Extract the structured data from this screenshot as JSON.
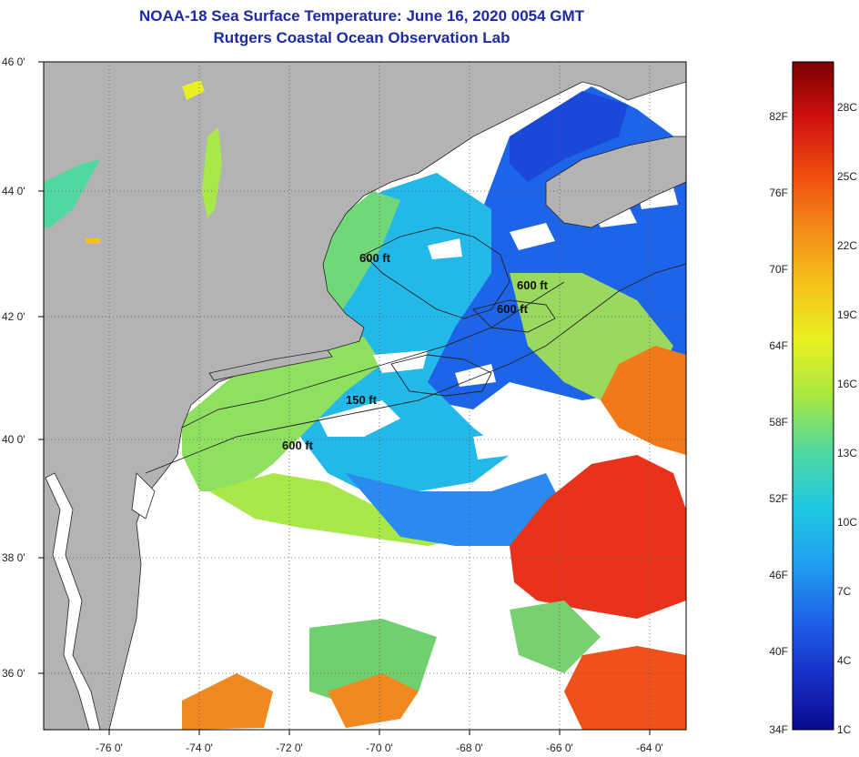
{
  "header": {
    "title": "NOAA-18 Sea Surface Temperature:  June 16, 2020 0054 GMT",
    "subtitle": "Rutgers Coastal Ocean Observation Lab"
  },
  "map": {
    "longitude_labels": [
      "-76 0'",
      "-74 0'",
      "-72 0'",
      "-70 0'",
      "-68 0'",
      "-66 0'",
      "-64 0'"
    ],
    "latitude_labels": [
      "46 0'",
      "44 0'",
      "42 0'",
      "40 0'",
      "38 0'",
      "36 0'"
    ],
    "contour_labels": [
      {
        "text": "600 ft"
      },
      {
        "text": "600 ft"
      },
      {
        "text": "600 ft"
      },
      {
        "text": "150 ft"
      },
      {
        "text": "600 ft"
      }
    ],
    "colors": {
      "land": "#b3b3b3",
      "cloud": "#ffffff",
      "warm": "#e8331a",
      "cool": "#1d56e0"
    }
  },
  "colorbar": {
    "fahrenheit_labels": [
      "82F",
      "76F",
      "70F",
      "64F",
      "58F",
      "52F",
      "46F",
      "40F",
      "34F"
    ],
    "celsius_labels": [
      "28C",
      "25C",
      "22C",
      "19C",
      "16C",
      "13C",
      "10C",
      "7C",
      "4C",
      "1C"
    ],
    "gradient": [
      "#7a0000",
      "#d01010",
      "#f04a10",
      "#f58a1a",
      "#f5c21a",
      "#e8f020",
      "#a8e840",
      "#50d8a0",
      "#20c8e0",
      "#20a0f0",
      "#1e64e8",
      "#1830c8",
      "#0a0a90"
    ]
  }
}
